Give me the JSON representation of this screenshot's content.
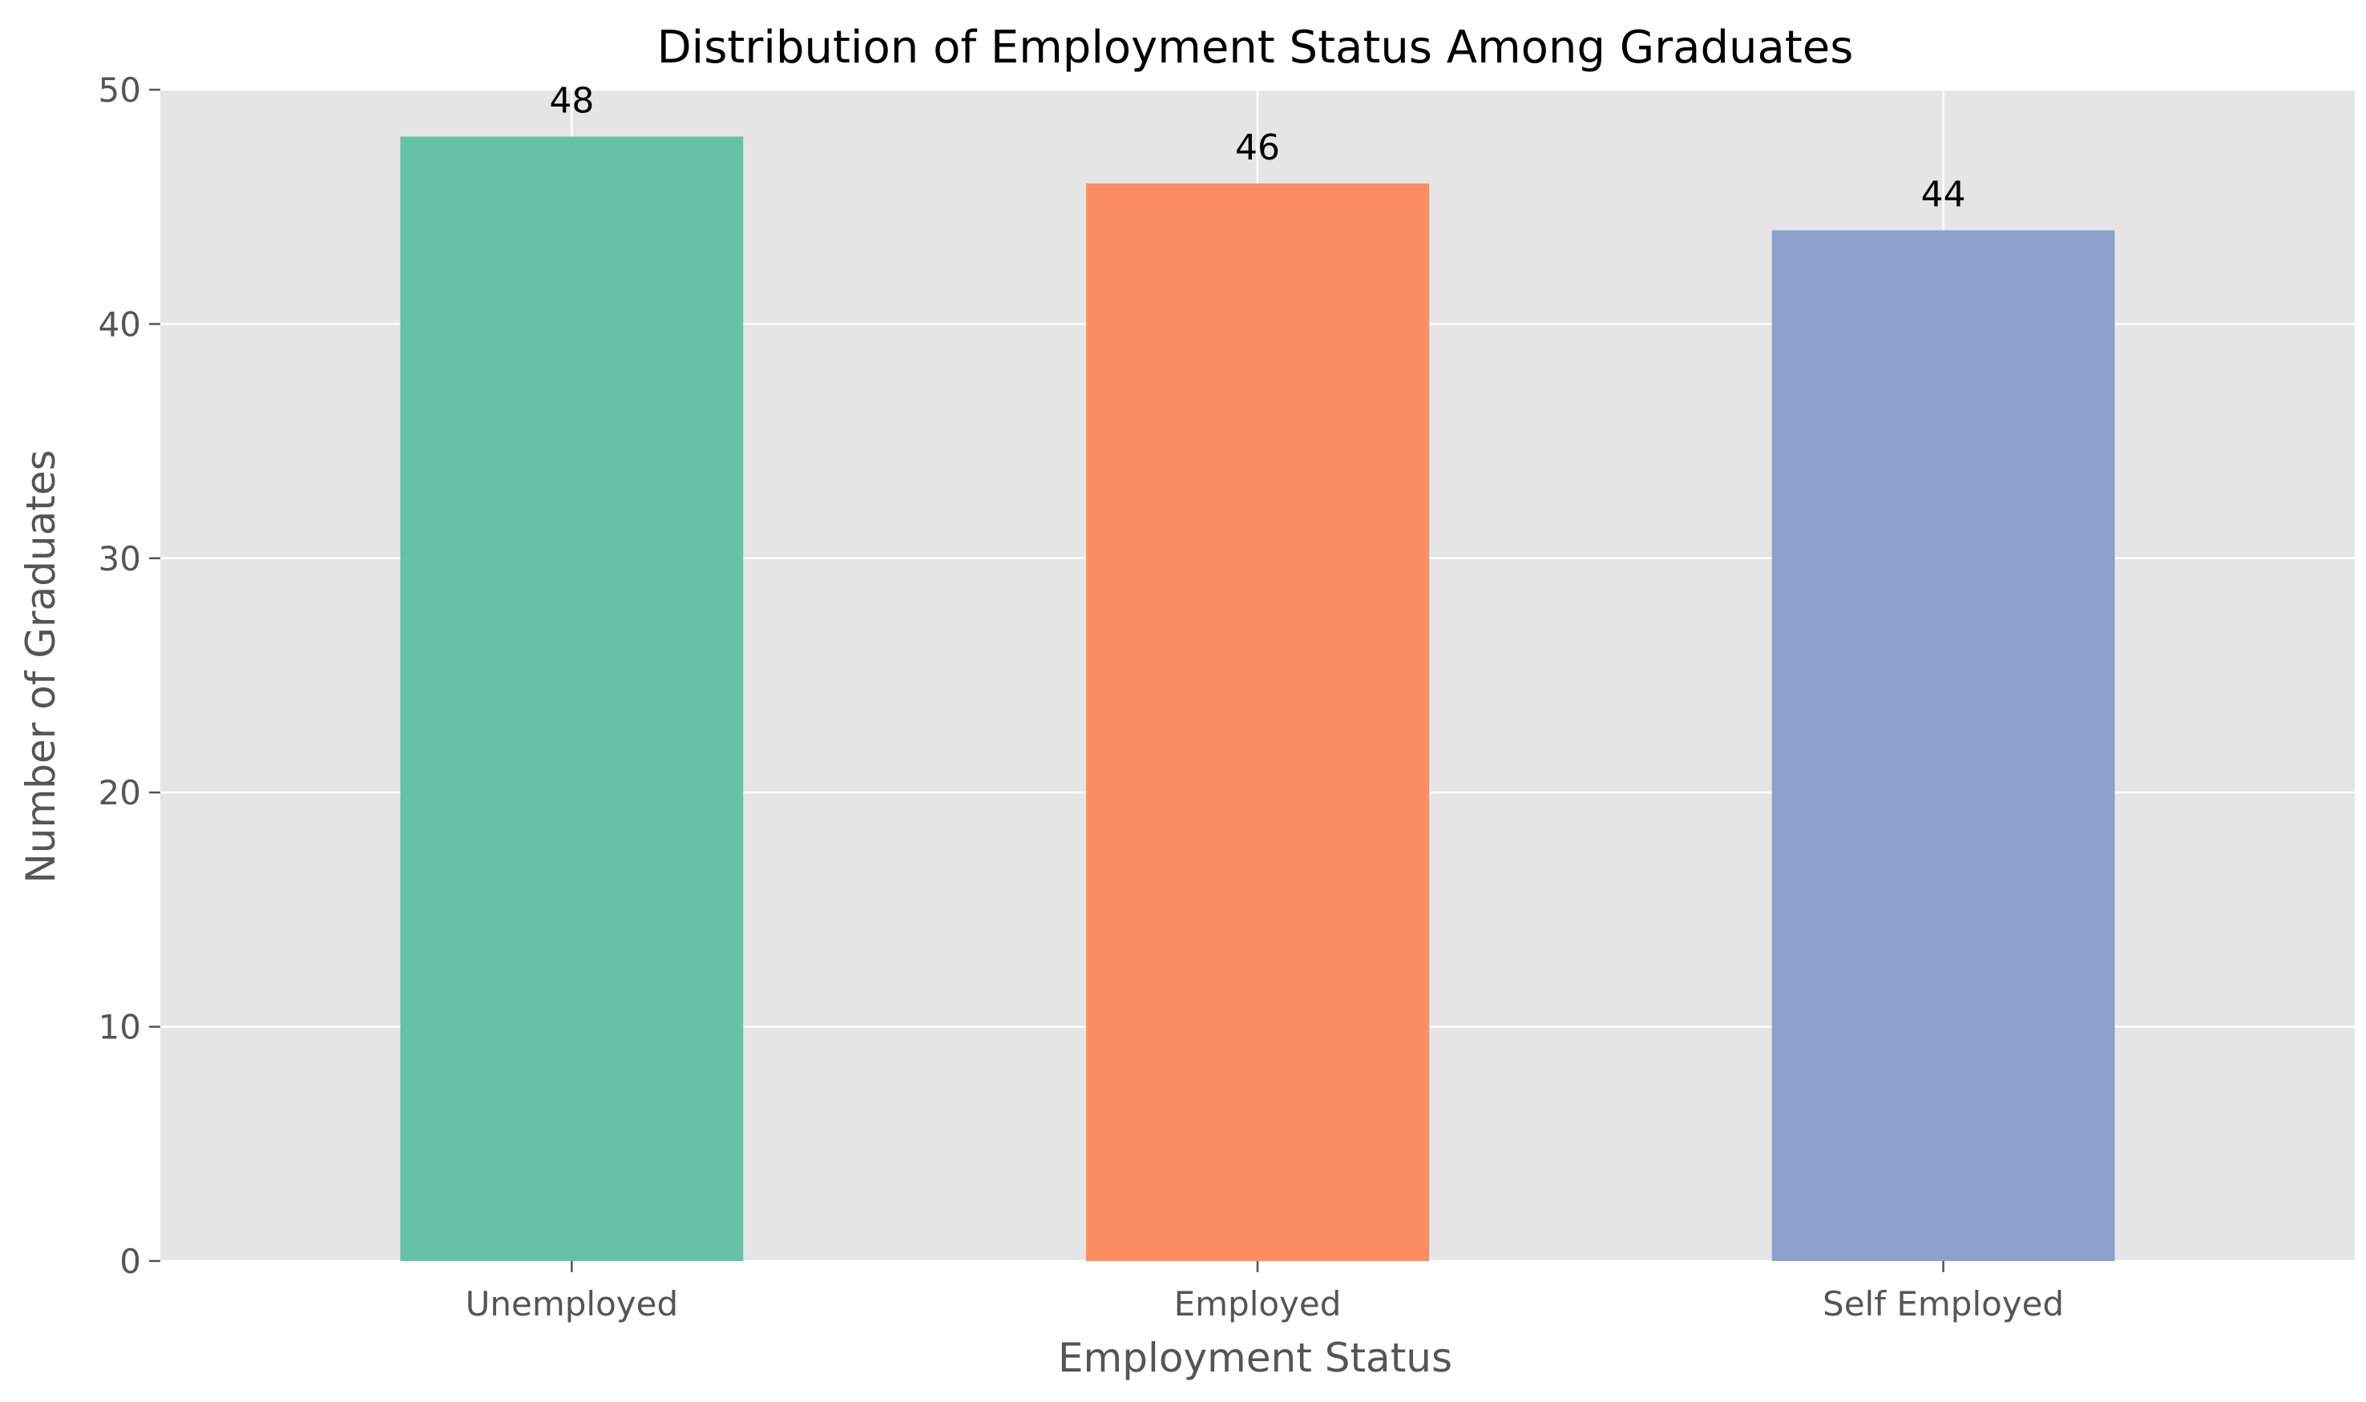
{
  "chart_data": {
    "type": "bar",
    "title": "Distribution of Employment Status Among Graduates",
    "xlabel": "Employment Status",
    "ylabel": "Number of Graduates",
    "categories": [
      "Unemployed",
      "Employed",
      "Self Employed"
    ],
    "values": [
      48,
      46,
      44
    ],
    "data_labels": [
      "48",
      "46",
      "44"
    ],
    "ylim": [
      0,
      50
    ],
    "yticks": [
      0,
      10,
      20,
      30,
      40,
      50
    ],
    "ytick_labels": [
      "0",
      "10",
      "20",
      "30",
      "40",
      "50"
    ],
    "grid": true,
    "legend": "none"
  },
  "colors": {
    "bars": [
      "#66c2a5",
      "#fc8d62",
      "#8da0cb"
    ],
    "plot_background": "#e5e5e5",
    "grid": "#ffffff",
    "tick": "#555555"
  }
}
